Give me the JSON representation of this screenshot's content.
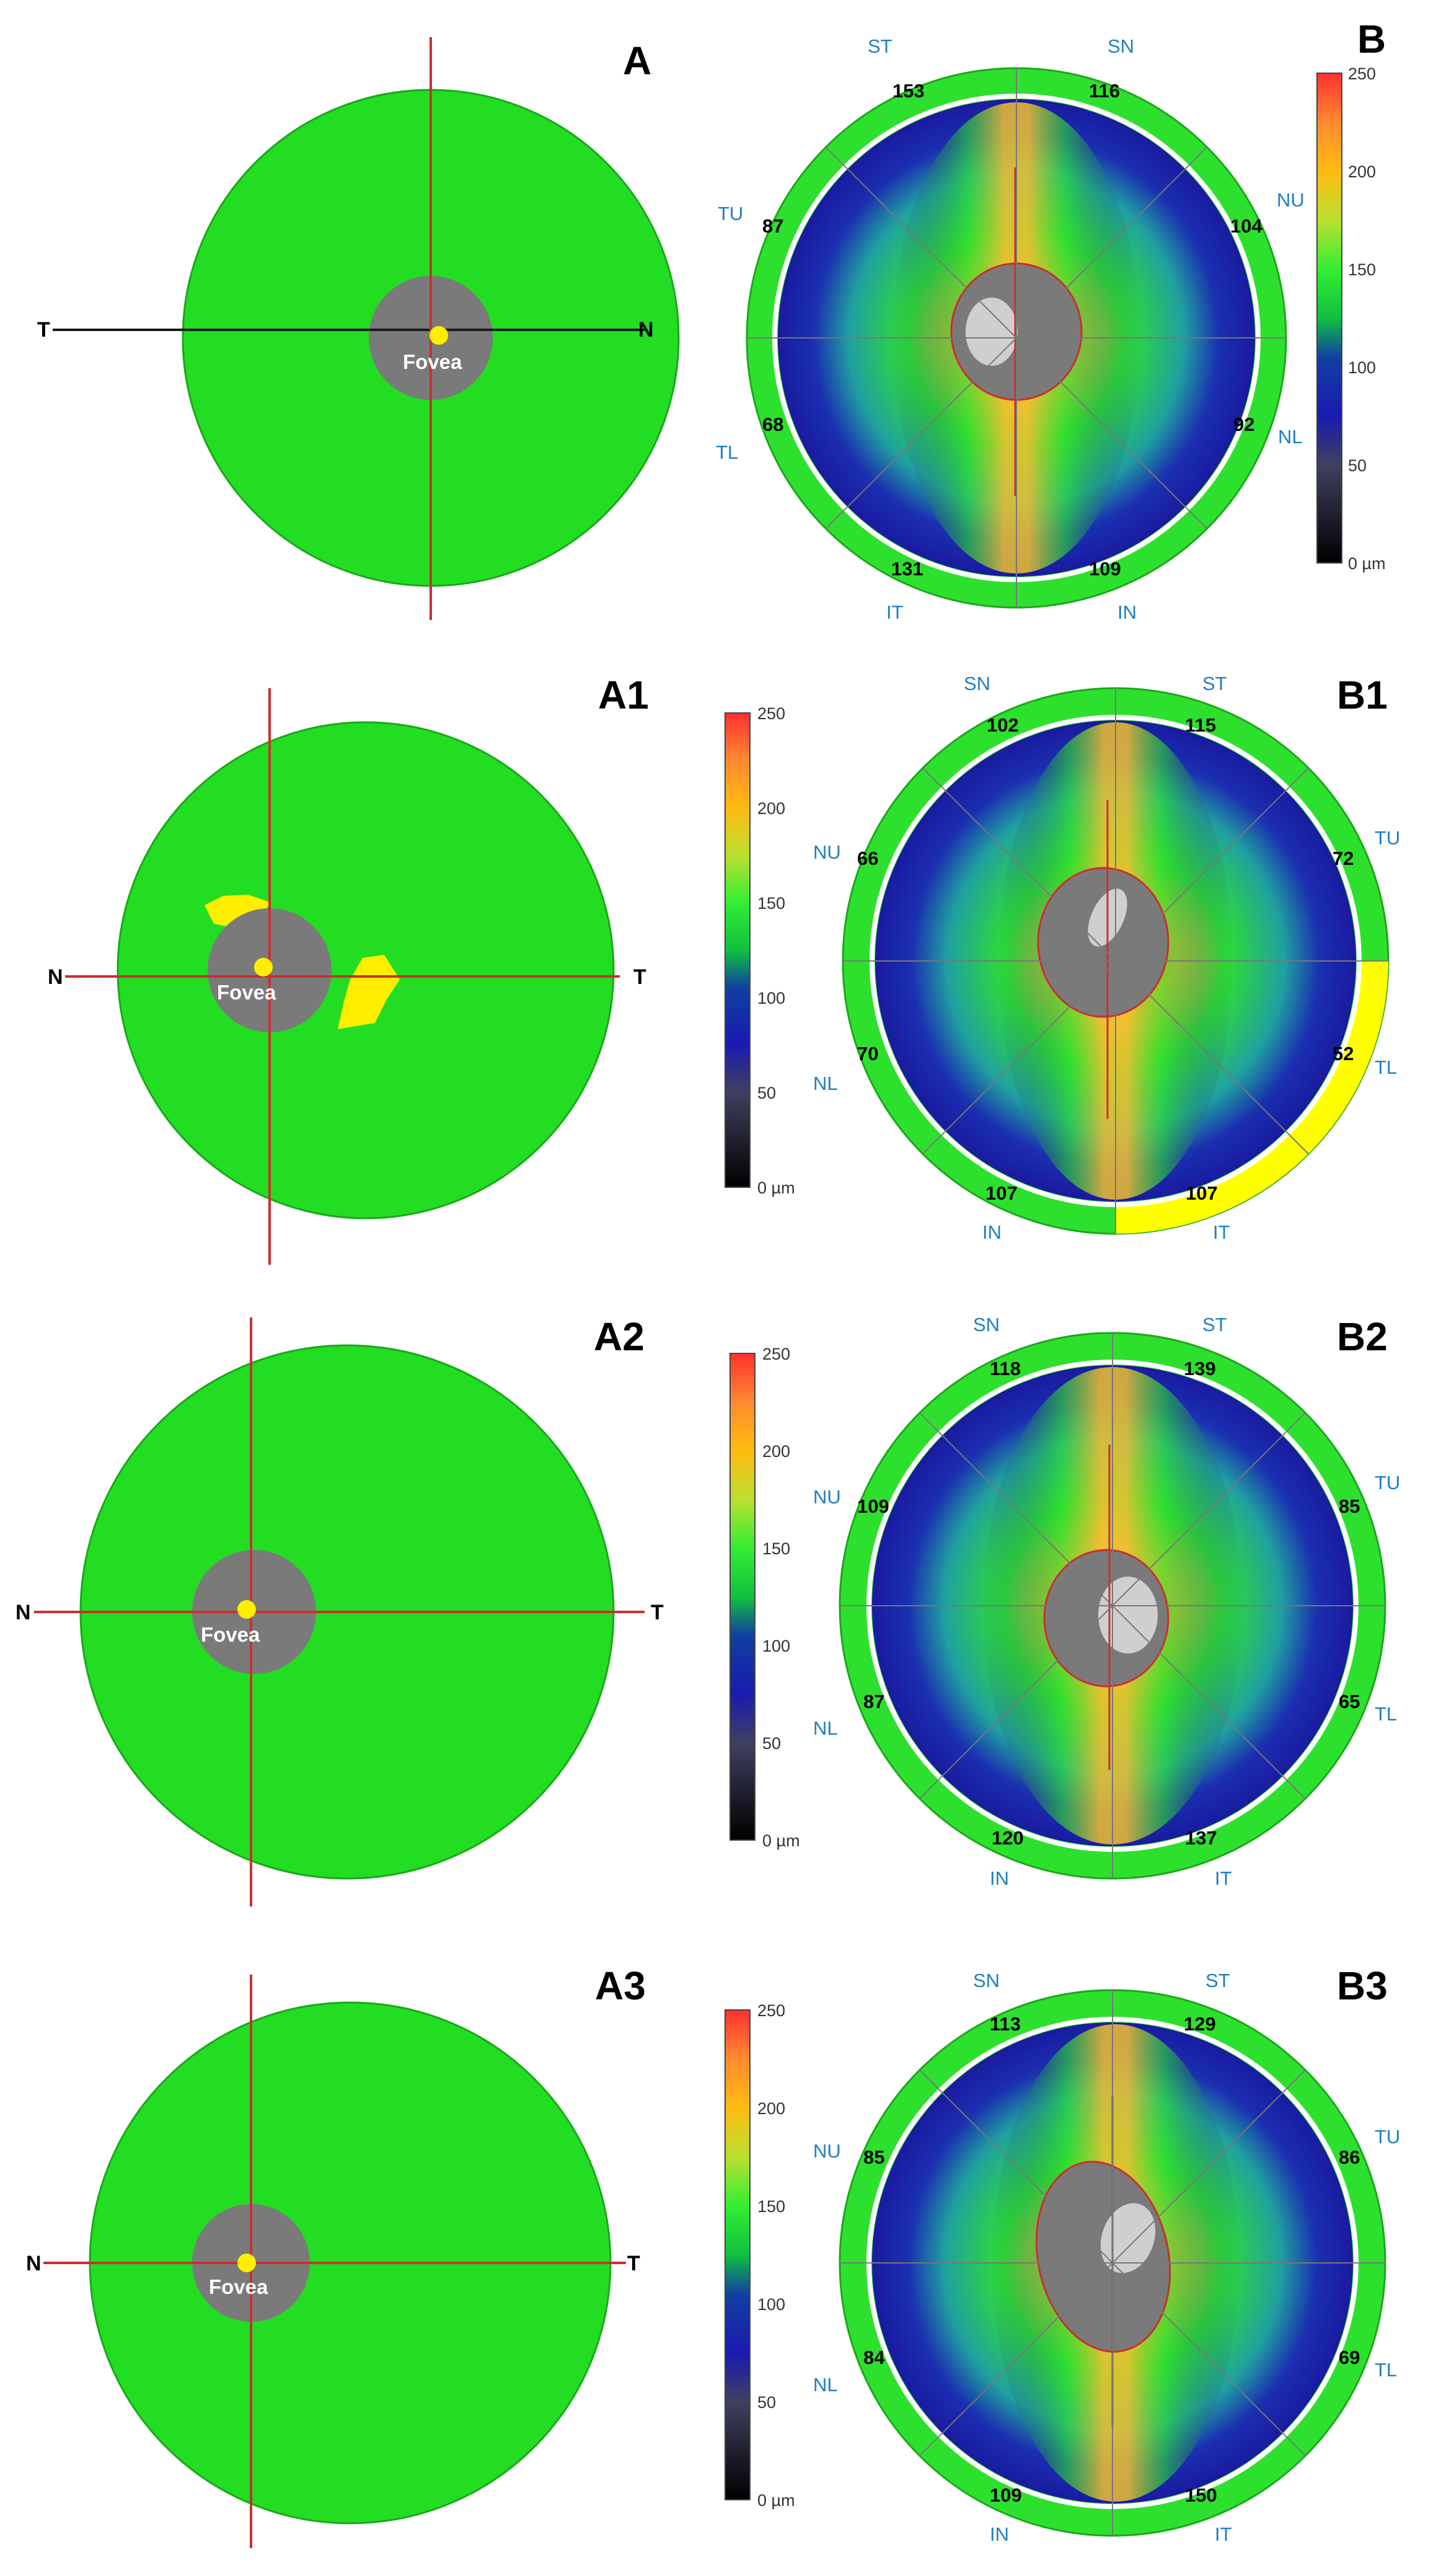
{
  "rows": [
    {
      "id": "r0",
      "label_a": "A",
      "label_b": "B",
      "dirs": {
        "left": "T",
        "right": "N"
      },
      "fovea_label": "Fovea",
      "sectors": {
        "top_left": "ST",
        "top_right": "SN",
        "upper_left": "TU",
        "upper_right": "NU",
        "lower_left": "TL",
        "lower_right": "NL",
        "bottom_left": "IT",
        "bottom_right": "IN"
      },
      "values": {
        "top_left": "153",
        "top_right": "116",
        "upper_left": "87",
        "upper_right": "104",
        "lower_left": "68",
        "lower_right": "92",
        "bottom_left": "131",
        "bottom_right": "109"
      },
      "yellow_spots": false,
      "highlight_sector": "none"
    },
    {
      "id": "r1",
      "label_a": "A1",
      "label_b": "B1",
      "dirs": {
        "left": "N",
        "right": "T"
      },
      "fovea_label": "Fovea",
      "sectors": {
        "top_left": "SN",
        "top_right": "ST",
        "upper_left": "NU",
        "upper_right": "TU",
        "lower_left": "NL",
        "lower_right": "TL",
        "bottom_left": "IN",
        "bottom_right": "IT"
      },
      "values": {
        "top_left": "102",
        "top_right": "115",
        "upper_left": "66",
        "upper_right": "72",
        "lower_left": "70",
        "lower_right": "52",
        "bottom_left": "107",
        "bottom_right": "107"
      },
      "yellow_spots": true,
      "highlight_sector": "TL-IT"
    },
    {
      "id": "r2",
      "label_a": "A2",
      "label_b": "B2",
      "dirs": {
        "left": "N",
        "right": "T"
      },
      "fovea_label": "Fovea",
      "sectors": {
        "top_left": "SN",
        "top_right": "ST",
        "upper_left": "NU",
        "upper_right": "TU",
        "lower_left": "NL",
        "lower_right": "TL",
        "bottom_left": "IN",
        "bottom_right": "IT"
      },
      "values": {
        "top_left": "118",
        "top_right": "139",
        "upper_left": "109",
        "upper_right": "85",
        "lower_left": "87",
        "lower_right": "65",
        "bottom_left": "120",
        "bottom_right": "137"
      },
      "yellow_spots": false,
      "highlight_sector": "none"
    },
    {
      "id": "r3",
      "label_a": "A3",
      "label_b": "B3",
      "dirs": {
        "left": "N",
        "right": "T"
      },
      "fovea_label": "Fovea",
      "sectors": {
        "top_left": "SN",
        "top_right": "ST",
        "upper_left": "NU",
        "upper_right": "TU",
        "lower_left": "NL",
        "lower_right": "TL",
        "bottom_left": "IN",
        "bottom_right": "IT"
      },
      "values": {
        "top_left": "113",
        "top_right": "129",
        "upper_left": "85",
        "upper_right": "86",
        "lower_left": "84",
        "lower_right": "69",
        "bottom_left": "109",
        "bottom_right": "150"
      },
      "yellow_spots": false,
      "highlight_sector": "none"
    }
  ],
  "colorbar": {
    "ticks": [
      "250",
      "200",
      "150",
      "100",
      "50",
      "0 µm"
    ],
    "tick_values": [
      250,
      200,
      150,
      100,
      50,
      0
    ]
  },
  "colors": {
    "map_green": "#22dd22",
    "fovea_gray": "#7a7a7a",
    "fovea_dot": "#ffee00",
    "axis_red": "#c83030",
    "axis_black": "#1a1a1a",
    "ring_green": "#2ee02e",
    "ring_yellow": "#ffff00",
    "sector_label": "#1e7fc2",
    "thick_center_light": "#cfcfcf"
  }
}
